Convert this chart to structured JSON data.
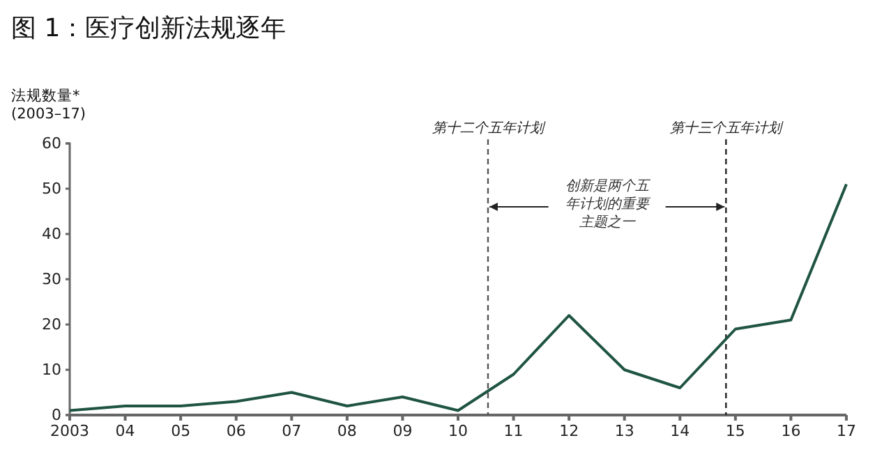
{
  "chart_data": {
    "type": "line",
    "title": "图 1：医疗创新法规逐年",
    "ylabel": "法规数量*\n(2003–17)",
    "x": [
      2003,
      2004,
      2005,
      2006,
      2007,
      2008,
      2009,
      2010,
      2011,
      2012,
      2013,
      2014,
      2015,
      2016,
      2017
    ],
    "series": [
      {
        "color": "#1f5443",
        "values": [
          1,
          2,
          2,
          3,
          5,
          2,
          4,
          1,
          9,
          22,
          10,
          6,
          19,
          21,
          51
        ]
      }
    ],
    "xlim": [
      2003,
      2017
    ],
    "xticks": [
      2003,
      {
        "value": 2004,
        "label": "04"
      },
      {
        "value": 2005,
        "label": "05"
      },
      {
        "value": 2006,
        "label": "06"
      },
      {
        "value": 2007,
        "label": "07"
      },
      {
        "value": 2008,
        "label": "08"
      },
      {
        "value": 2009,
        "label": "09"
      },
      {
        "value": 2010,
        "label": "10"
      },
      {
        "value": 2011,
        "label": "11"
      },
      {
        "value": 2012,
        "label": "12"
      },
      {
        "value": 2013,
        "label": "13"
      },
      {
        "value": 2014,
        "label": "14"
      },
      {
        "value": 2015,
        "label": "15"
      },
      {
        "value": 2016,
        "label": "16"
      },
      {
        "value": 2017,
        "label": "17"
      }
    ],
    "ylim": [
      0,
      60
    ],
    "yticks": [
      0,
      10,
      20,
      30,
      40,
      50,
      60
    ],
    "ref_lines": [
      {
        "axis": "x",
        "value": 2010.54,
        "label": "第十二个五年计划",
        "line_style": "dashed",
        "color": "#555555"
      },
      {
        "axis": "x",
        "value": 2014.83,
        "label": "第十三个五年计划",
        "line_style": "dashed",
        "color": "#222222"
      }
    ],
    "annotations": [
      {
        "text": "创新是两个五年计划的重要主题之一",
        "x": 2010.54,
        "y": 46
      }
    ],
    "grid": false,
    "marker": "none",
    "line_style": "solid"
  }
}
